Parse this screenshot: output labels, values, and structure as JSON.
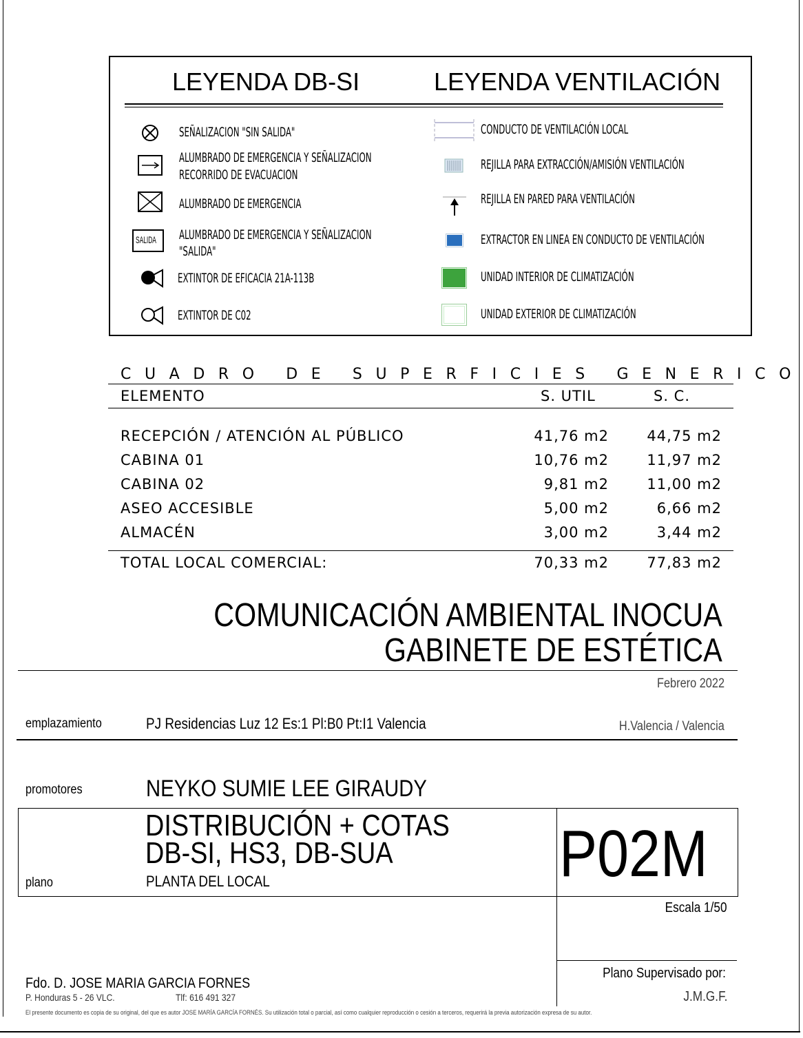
{
  "legend": {
    "title_dbsi": "LEYENDA DB-SI",
    "title_vent": "LEYENDA VENTILACIÓN",
    "dbsi_items": [
      {
        "icon": "circle-x-icon",
        "lines": [
          "SEÑALIZACION \"SIN SALIDA\""
        ]
      },
      {
        "icon": "arrow-box-icon",
        "lines": [
          "ALUMBRADO DE EMERGENCIA Y SEÑALIZACION",
          "RECORRIDO DE EVACUACION"
        ]
      },
      {
        "icon": "x-box-icon",
        "lines": [
          "ALUMBRADO DE EMERGENCIA"
        ]
      },
      {
        "icon": "salida-box-icon",
        "icon_text": "SALIDA",
        "lines": [
          "ALUMBRADO DE EMERGENCIA Y SEÑALIZACION",
          "\"SALIDA\""
        ]
      },
      {
        "icon": "extinguisher-filled-icon",
        "lines": [
          "EXTINTOR DE EFICACIA 21A-113B"
        ]
      },
      {
        "icon": "extinguisher-outline-icon",
        "lines": [
          "EXTINTOR DE C02"
        ]
      }
    ],
    "vent_items": [
      {
        "icon": "duct-icon",
        "label": "CONDUCTO DE VENTILACIÓN LOCAL"
      },
      {
        "icon": "grille-icon",
        "label": "REJILLA PARA EXTRACCIÓN/AMISIÓN VENTILACIÓN"
      },
      {
        "icon": "wall-grille-arrow-icon",
        "label": "REJILLA EN PARED PARA VENTILACIÓN"
      },
      {
        "icon": "inline-extractor-icon",
        "label": "EXTRACTOR EN LINEA EN CONDUCTO DE VENTILACIÓN",
        "color": "#2a6fbd"
      },
      {
        "icon": "indoor-unit-icon",
        "label": "UNIDAD INTERIOR DE CLIMATIZACIÓN",
        "color": "#3da33d"
      },
      {
        "icon": "outdoor-unit-icon",
        "label": "UNIDAD EXTERIOR DE CLIMATIZACIÓN"
      }
    ]
  },
  "surfaces": {
    "title": "CUADRO DE SUPERFICIES GENERICO",
    "headers": [
      "ELEMENTO",
      "S. UTIL",
      "S. C."
    ],
    "rows": [
      {
        "name": "RECEPCIÓN / ATENCIÓN AL PÚBLICO",
        "util": "41,76 m2",
        "sc": "44,75 m2"
      },
      {
        "name": "CABINA 01",
        "util": "10,76 m2",
        "sc": "11,97 m2"
      },
      {
        "name": "CABINA 02",
        "util": "9,81 m2",
        "sc": "11,00 m2"
      },
      {
        "name": "ASEO ACCESIBLE",
        "util": "5,00 m2",
        "sc": "6,66 m2"
      },
      {
        "name": "ALMACÉN",
        "util": "3,00 m2",
        "sc": "3,44 m2"
      }
    ],
    "total": {
      "name": "TOTAL LOCAL COMERCIAL:",
      "util": "70,33 m2",
      "sc": "77,83 m2"
    }
  },
  "title_block": {
    "title_line1": "COMUNICACIÓN AMBIENTAL INOCUA",
    "title_line2": "GABINETE DE ESTÉTICA",
    "date": "Febrero 2022",
    "emplazamiento_label": "emplazamiento",
    "emplazamiento_value": "PJ Residencias Luz 12 Es:1 Pl:B0 Pt:I1 Valencia",
    "location": "H.Valencia / Valencia",
    "promotores_label": "promotores",
    "promotores_value": "NEYKO SUMIE LEE GIRAUDY",
    "plano_label": "plano",
    "plano_line1": "DISTRIBUCIÓN + COTAS",
    "plano_line2": "DB-SI, HS3, DB-SUA",
    "plano_sub": "PLANTA DEL LOCAL",
    "plano_code": "P02M",
    "escala": "Escala 1/50",
    "supervisado": "Plano Supervisado por:",
    "supervisor": "J.M.G.F.",
    "signed": "Fdo. D. JOSE MARIA GARCIA FORNES",
    "address": "P. Honduras 5 - 26 VLC.",
    "phone": "Tlf: 616 491 327",
    "disclaimer": "El presente documento es copia de su original, del que es autor JOSE MARÍA GARCÍA FORNÉS. Su utilización total o parcial, así como cualquier reproducción o cesión a terceros, requerirá la previa autorización expresa de su autor."
  }
}
